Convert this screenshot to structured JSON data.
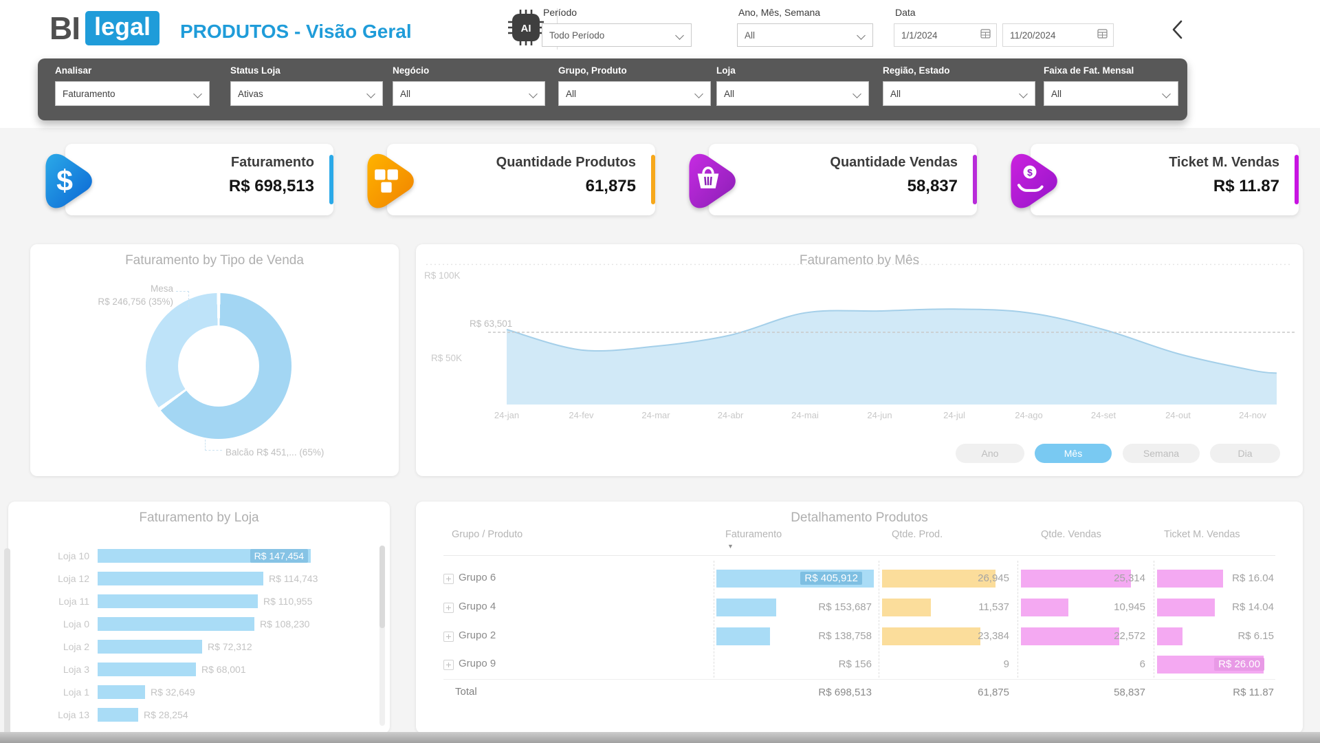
{
  "header": {
    "logo_bi": "BI",
    "logo_legal": "legal",
    "title": "PRODUTOS - Visão Geral",
    "ai_label": "AI",
    "periodo": {
      "label": "Período",
      "value": "Todo Período"
    },
    "ano_mes_semana": {
      "label": "Ano, Mês, Semana",
      "value": "All"
    },
    "data": {
      "label": "Data",
      "start": "1/1/2024",
      "end": "11/20/2024"
    }
  },
  "filter_bar": [
    {
      "label": "Analisar",
      "value": "Faturamento"
    },
    {
      "label": "Status Loja",
      "value": "Ativas"
    },
    {
      "label": "Negócio",
      "value": "All"
    },
    {
      "label": "Grupo, Produto",
      "value": "All"
    },
    {
      "label": "Loja",
      "value": "All"
    },
    {
      "label": "Região, Estado",
      "value": "All"
    },
    {
      "label": "Faixa de Fat. Mensal",
      "value": "All"
    }
  ],
  "kpi_cards": [
    {
      "title": "Faturamento",
      "value": "R$ 698,513",
      "icon": "dollar-icon",
      "grad1": "#2BA9E8",
      "grad2": "#0B66D4",
      "edge": "#2BA9E8"
    },
    {
      "title": "Quantidade Produtos",
      "value": "61,875",
      "icon": "packages-icon",
      "grad1": "#FFB300",
      "grad2": "#F08300",
      "edge": "#F7A81B"
    },
    {
      "title": "Quantidade Vendas",
      "value": "58,837",
      "icon": "basket-icon",
      "grad1": "#C62BE2",
      "grad2": "#8A1FB5",
      "edge": "#B82BD9"
    },
    {
      "title": "Ticket M. Vendas",
      "value": "R$ 11.87",
      "icon": "hand-coin-icon",
      "grad1": "#CB22DE",
      "grad2": "#9414C9",
      "edge": "#C813E2"
    }
  ],
  "chart_data": [
    {
      "id": "tipo-venda-donut",
      "type": "pie",
      "donut": true,
      "title": "Faturamento by Tipo de Venda",
      "slices": [
        {
          "label": "Balcão",
          "value_pct": 65,
          "display": "Balcão R$ 451,... (65%)",
          "color": "#A3D6F3"
        },
        {
          "label": "Mesa",
          "value_pct": 35,
          "display_name": "Mesa",
          "display_value": "R$ 246,756 (35%)",
          "color": "#BEE3F9"
        }
      ]
    },
    {
      "id": "faturamento-mes-area",
      "type": "area",
      "title": "Faturamento by Mês",
      "x": [
        "24-jan",
        "24-fev",
        "24-mar",
        "24-abr",
        "24-mai",
        "24-jun",
        "24-jul",
        "24-ago",
        "24-set",
        "24-out",
        "24-nov"
      ],
      "values_k": [
        65,
        54,
        56,
        62,
        74,
        75,
        76,
        74,
        65,
        52,
        43
      ],
      "ylim_k": [
        25,
        105
      ],
      "y_ticks": [
        {
          "label": "R$ 100K",
          "value_k": 100
        },
        {
          "label": "R$ 50K",
          "value_k": 50
        }
      ],
      "ref_line": {
        "label": "R$ 63,501",
        "value_k": 63.5
      },
      "area_color": "#C9E5F6",
      "line_color": "#A4CFE9",
      "grid": "dotted-top-only",
      "period_buttons": [
        {
          "label": "Ano",
          "active": false
        },
        {
          "label": "Mês",
          "active": true
        },
        {
          "label": "Semana",
          "active": false
        },
        {
          "label": "Dia",
          "active": false
        }
      ]
    },
    {
      "id": "faturamento-loja-bar",
      "type": "bar",
      "orientation": "horizontal",
      "title": "Faturamento by Loja",
      "categories": [
        "Loja 10",
        "Loja 12",
        "Loja 11",
        "Loja 0",
        "Loja 2",
        "Loja 3",
        "Loja 1",
        "Loja 13"
      ],
      "values": [
        147454,
        114743,
        110955,
        108230,
        72312,
        68001,
        32649,
        28254
      ],
      "value_labels": [
        "R$ 147,454",
        "R$ 114,743",
        "R$ 110,955",
        "R$ 108,230",
        "R$ 72,312",
        "R$ 68,001",
        "R$ 32,649",
        "R$ 28,254"
      ],
      "bar_color": "#A9DCF6"
    },
    {
      "id": "detalhamento-produtos-table",
      "type": "table",
      "title": "Detalhamento Produtos",
      "columns": [
        "Grupo / Produto",
        "Faturamento",
        "Qtde. Prod.",
        "Qtde. Vendas",
        "Ticket M. Vendas"
      ],
      "sorted_by": "Faturamento",
      "bar_colors": {
        "faturamento": "#A9DCF6",
        "qtde_prod": "#FBDD9B",
        "qtde_vendas": "#F4A9F2",
        "ticket": "#F4A9F2"
      },
      "rows": [
        {
          "group": "Grupo 6",
          "faturamento": 405912,
          "faturamento_label": "R$ 405,912",
          "qtde_prod": 26945,
          "qtde_prod_label": "26,945",
          "qtde_vendas": 25314,
          "qtde_vendas_label": "25,314",
          "ticket": 16.04,
          "ticket_label": "R$ 16.04"
        },
        {
          "group": "Grupo 4",
          "faturamento": 153687,
          "faturamento_label": "R$ 153,687",
          "qtde_prod": 11537,
          "qtde_prod_label": "11,537",
          "qtde_vendas": 10945,
          "qtde_vendas_label": "10,945",
          "ticket": 14.04,
          "ticket_label": "R$ 14.04"
        },
        {
          "group": "Grupo 2",
          "faturamento": 138758,
          "faturamento_label": "R$ 138,758",
          "qtde_prod": 23384,
          "qtde_prod_label": "23,384",
          "qtde_vendas": 22572,
          "qtde_vendas_label": "22,572",
          "ticket": 6.15,
          "ticket_label": "R$ 6.15"
        },
        {
          "group": "Grupo 9",
          "faturamento": 156,
          "faturamento_label": "R$ 156",
          "qtde_prod": 9,
          "qtde_prod_label": "9",
          "qtde_vendas": 6,
          "qtde_vendas_label": "6",
          "ticket": 26.0,
          "ticket_label": "R$ 26.00"
        }
      ],
      "total_row": {
        "group": "Total",
        "faturamento_label": "R$ 698,513",
        "qtde_prod_label": "61,875",
        "qtde_vendas_label": "58,837",
        "ticket_label": "R$ 11.87"
      }
    }
  ],
  "misc": {
    "sort_icon": "▼",
    "accent_blue": "#1F9CD9",
    "dark_bar": "#585858"
  }
}
